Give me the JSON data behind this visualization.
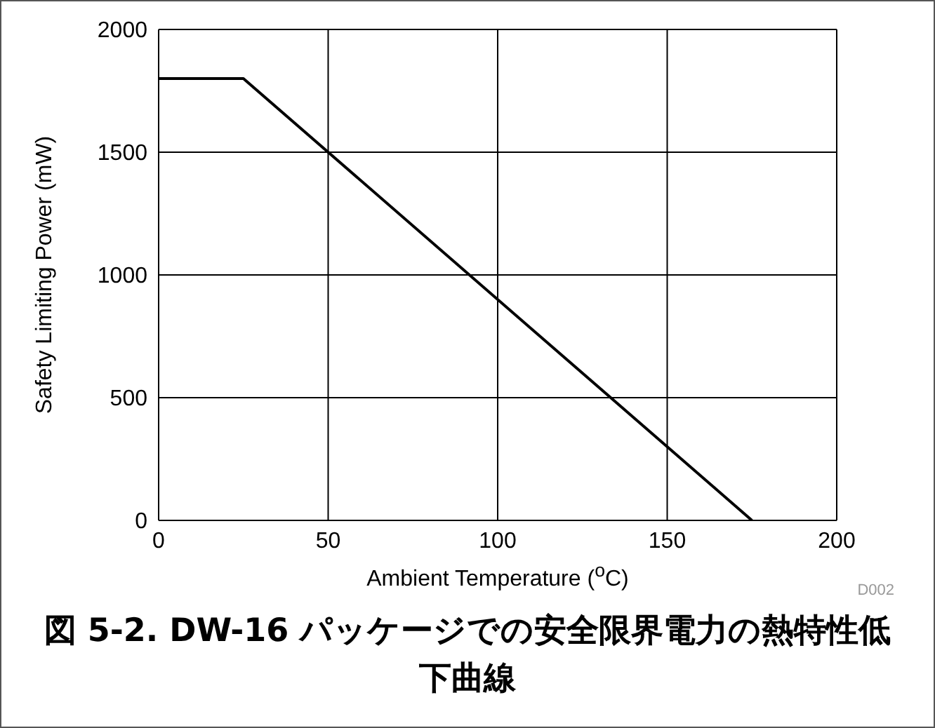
{
  "chart_data": {
    "type": "line",
    "title": "図 5-2. DW-16 パッケージでの安全限界電力の熱特性低下曲線",
    "xlabel": "Ambient Temperature ($^{o}$C)",
    "ylabel": "Safety Limiting Power (mW)",
    "annotations": [
      "D002"
    ],
    "x": [
      0,
      25,
      175
    ],
    "series": [
      {
        "color": "#000000",
        "values": [
          1800,
          1800,
          0
        ]
      }
    ],
    "xlim": [
      0,
      200
    ],
    "xticks": [
      0,
      50,
      100,
      150,
      200
    ],
    "ylim": [
      0,
      2000
    ],
    "yticks": [
      0,
      500,
      1000,
      1500,
      2000
    ],
    "grid": true,
    "legend": false,
    "marker": "none",
    "line_style": "solid"
  }
}
